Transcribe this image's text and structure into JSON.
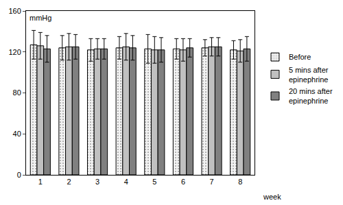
{
  "chart_data": {
    "type": "bar",
    "y_label": "mmHg",
    "x_label": "week",
    "categories": [
      "1",
      "2",
      "3",
      "4",
      "5",
      "6",
      "7",
      "8"
    ],
    "series": [
      {
        "name": "Before",
        "color": "#f2f2f2",
        "marker": "dotted",
        "values": [
          127,
          124,
          122,
          124,
          123,
          123,
          124,
          122
        ],
        "errors": [
          14,
          12,
          11,
          11,
          14,
          10,
          8,
          9
        ]
      },
      {
        "name": "5 mins after epinephrine",
        "color": "#c0c0c0",
        "values": [
          126,
          125,
          123,
          125,
          122,
          122,
          125,
          121
        ],
        "errors": [
          13,
          13,
          10,
          13,
          13,
          11,
          9,
          11
        ]
      },
      {
        "name": "20 mins after epinephrine",
        "color": "#808080",
        "values": [
          123,
          125,
          123,
          124,
          122,
          124,
          125,
          123
        ],
        "errors": [
          13,
          12,
          10,
          12,
          12,
          9,
          9,
          12
        ]
      }
    ],
    "ylim": [
      0,
      160
    ],
    "yticks": [
      0,
      40,
      80,
      120,
      160
    ],
    "grid": false,
    "legend": "right"
  }
}
